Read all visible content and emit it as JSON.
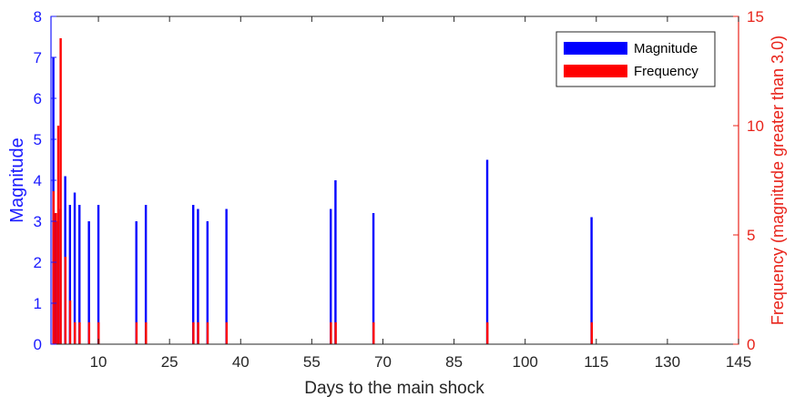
{
  "chart_data": {
    "type": "bar",
    "xlabel": "Days to the main shock",
    "ylabel_left": "Magnitude",
    "ylabel_right": "Frequency (magnitude greater than 3.0)",
    "xlim": [
      0,
      145
    ],
    "ylim_left": [
      0,
      8
    ],
    "ylim_right": [
      0,
      15
    ],
    "xticks": [
      10,
      25,
      40,
      55,
      70,
      85,
      100,
      115,
      130,
      145
    ],
    "yticks_left": [
      0,
      1,
      2,
      3,
      4,
      5,
      6,
      7,
      8
    ],
    "yticks_right": [
      0,
      5,
      10,
      15
    ],
    "legend": {
      "position": "top-right",
      "entries": [
        "Magnitude",
        "Frequency"
      ]
    },
    "colors": {
      "magnitude": "#0000ff",
      "frequency": "#ff0000",
      "left_axis": "#1a1aff",
      "right_axis": "#e8231a"
    },
    "series": [
      {
        "name": "Magnitude",
        "axis": "left",
        "x": [
          0.5,
          1,
          1.5,
          2,
          3,
          4,
          5,
          6,
          8,
          10,
          18,
          20,
          30,
          31,
          33,
          37,
          59,
          60,
          68,
          92,
          114
        ],
        "values": [
          7.0,
          3.2,
          3.0,
          3.3,
          4.1,
          3.4,
          3.7,
          3.4,
          3.0,
          3.4,
          3.0,
          3.4,
          3.4,
          3.3,
          3.0,
          3.3,
          3.3,
          4.0,
          3.2,
          4.5,
          3.1
        ]
      },
      {
        "name": "Frequency",
        "axis": "right",
        "x": [
          0.5,
          1,
          1.5,
          2,
          3,
          4,
          5,
          6,
          8,
          10,
          18,
          20,
          30,
          31,
          33,
          37,
          59,
          60,
          68,
          92,
          114
        ],
        "values": [
          7,
          6,
          10,
          14,
          4,
          2,
          1,
          1,
          1,
          1,
          1,
          1,
          1,
          1,
          1,
          1,
          1,
          1,
          1,
          1,
          1
        ]
      }
    ]
  }
}
